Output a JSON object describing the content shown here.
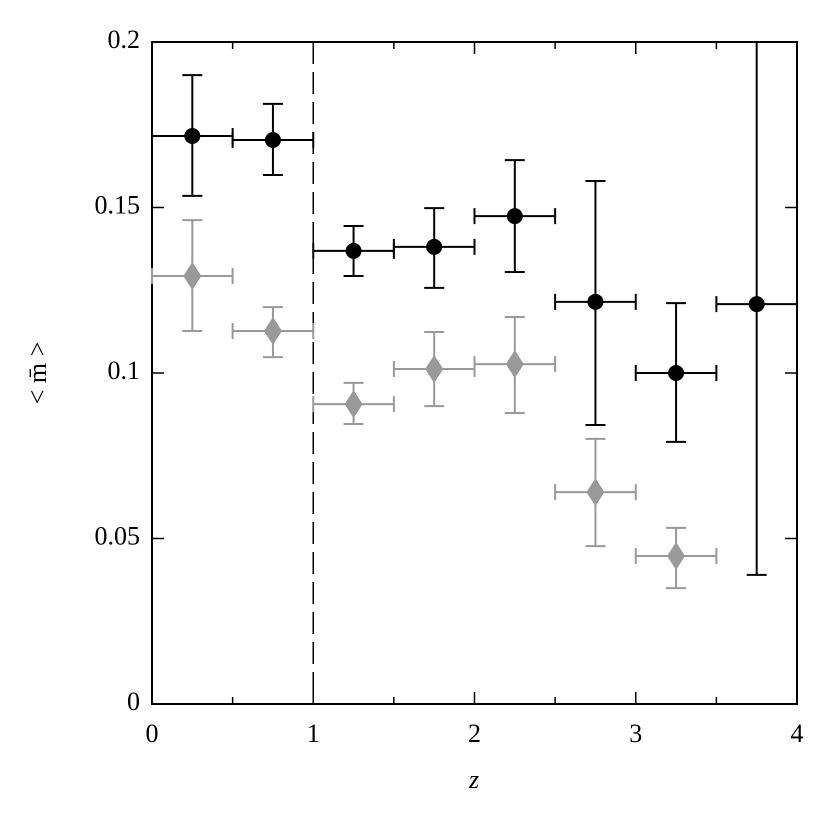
{
  "chart_data": {
    "type": "errorbar-scatter",
    "xlabel": "z",
    "ylabel": "< m̄ >",
    "xlim": [
      0,
      4
    ],
    "ylim": [
      0,
      0.2
    ],
    "xticks": [
      0,
      1,
      2,
      3,
      4
    ],
    "xminorticks": [
      0.5,
      1.5,
      2.5,
      3.5
    ],
    "yticks": [
      0,
      0.05,
      0.1,
      0.15,
      0.2
    ],
    "vlines": [
      1
    ],
    "series": [
      {
        "color": "#000000",
        "marker": "circle",
        "x": [
          0.25,
          0.75,
          1.25,
          1.75,
          2.25,
          2.75,
          3.25,
          3.75
        ],
        "xerr": [
          0.25,
          0.25,
          0.25,
          0.25,
          0.25,
          0.25,
          0.25,
          0.25
        ],
        "values": [
          0.1716,
          0.1704,
          0.1369,
          0.1381,
          0.1474,
          0.1215,
          0.1,
          0.1208
        ],
        "yerr_minus": [
          0.0181,
          0.0106,
          0.0076,
          0.0124,
          0.0169,
          0.0372,
          0.0208,
          0.0818
        ],
        "yerr_plus": [
          0.0184,
          0.0109,
          0.0075,
          0.0117,
          0.0169,
          0.0365,
          0.0211,
          0.0792
        ]
      },
      {
        "color": "#999999",
        "marker": "diamond",
        "x": [
          0.25,
          0.75,
          1.25,
          1.75,
          2.25,
          2.75,
          3.25
        ],
        "xerr": [
          0.25,
          0.25,
          0.25,
          0.25,
          0.25,
          0.25,
          0.25
        ],
        "values": [
          0.1293,
          0.1127,
          0.0906,
          0.1012,
          0.1027,
          0.064,
          0.0447
        ],
        "yerr_minus": [
          0.0166,
          0.0079,
          0.006,
          0.0112,
          0.0148,
          0.0163,
          0.0097
        ],
        "yerr_plus": [
          0.0169,
          0.0072,
          0.0064,
          0.0112,
          0.0142,
          0.0161,
          0.0085
        ]
      }
    ]
  }
}
